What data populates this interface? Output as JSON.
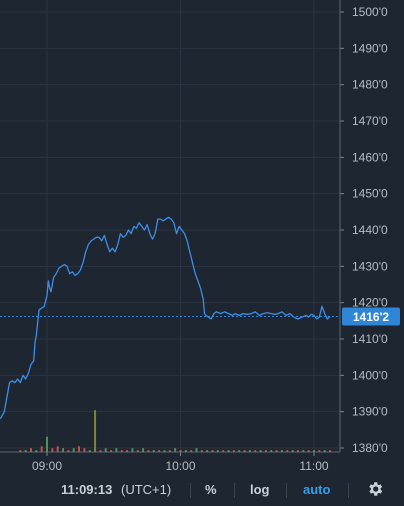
{
  "chart_data": {
    "type": "line",
    "title": "",
    "xlabel": "",
    "ylabel": "",
    "ylim": [
      1378,
      1502
    ],
    "xlim": [
      8.65,
      11.18
    ],
    "y_ticks": [
      "1500'0",
      "1490'0",
      "1480'0",
      "1470'0",
      "1460'0",
      "1450'0",
      "1440'0",
      "1430'0",
      "1420'0",
      "1410'0",
      "1400'0",
      "1390'0",
      "1380'0"
    ],
    "y_tick_values": [
      1500,
      1490,
      1480,
      1470,
      1460,
      1450,
      1440,
      1430,
      1420,
      1410,
      1400,
      1390,
      1380
    ],
    "x_ticks": [
      "09:00",
      "10:00",
      "11:00"
    ],
    "x_tick_values": [
      9,
      10,
      11
    ],
    "current_value_label": "1416'2",
    "current_value": 1416.2,
    "grid": true,
    "series": [
      {
        "values": [
          [
            8.65,
            1388
          ],
          [
            8.68,
            1390
          ],
          [
            8.7,
            1394
          ],
          [
            8.72,
            1398
          ],
          [
            8.74,
            1398.5
          ],
          [
            8.76,
            1398
          ],
          [
            8.78,
            1399
          ],
          [
            8.8,
            1398
          ],
          [
            8.82,
            1400
          ],
          [
            8.84,
            1399
          ],
          [
            8.86,
            1400.5
          ],
          [
            8.88,
            1403
          ],
          [
            8.9,
            1404
          ],
          [
            8.91,
            1409
          ],
          [
            8.92,
            1411
          ],
          [
            8.94,
            1418
          ],
          [
            8.96,
            1418.5
          ],
          [
            8.98,
            1419
          ],
          [
            9.0,
            1422
          ],
          [
            9.01,
            1426
          ],
          [
            9.02,
            1424
          ],
          [
            9.03,
            1423
          ],
          [
            9.05,
            1427
          ],
          [
            9.07,
            1428
          ],
          [
            9.09,
            1429.5
          ],
          [
            9.11,
            1430
          ],
          [
            9.13,
            1430.5
          ],
          [
            9.15,
            1430
          ],
          [
            9.17,
            1428
          ],
          [
            9.19,
            1428.5
          ],
          [
            9.21,
            1427.5
          ],
          [
            9.23,
            1428
          ],
          [
            9.25,
            1429
          ],
          [
            9.27,
            1431
          ],
          [
            9.29,
            1434
          ],
          [
            9.31,
            1436
          ],
          [
            9.33,
            1437
          ],
          [
            9.35,
            1437.5
          ],
          [
            9.37,
            1438
          ],
          [
            9.39,
            1438
          ],
          [
            9.41,
            1437
          ],
          [
            9.43,
            1438.5
          ],
          [
            9.45,
            1436
          ],
          [
            9.47,
            1434
          ],
          [
            9.49,
            1435
          ],
          [
            9.51,
            1434
          ],
          [
            9.53,
            1436
          ],
          [
            9.55,
            1439
          ],
          [
            9.57,
            1438
          ],
          [
            9.59,
            1438.5
          ],
          [
            9.61,
            1440
          ],
          [
            9.63,
            1439
          ],
          [
            9.65,
            1441
          ],
          [
            9.67,
            1440.5
          ],
          [
            9.69,
            1442
          ],
          [
            9.71,
            1441
          ],
          [
            9.73,
            1440
          ],
          [
            9.75,
            1441.5
          ],
          [
            9.77,
            1439
          ],
          [
            9.79,
            1437.5
          ],
          [
            9.81,
            1439
          ],
          [
            9.83,
            1443
          ],
          [
            9.85,
            1443
          ],
          [
            9.87,
            1442.5
          ],
          [
            9.89,
            1443
          ],
          [
            9.91,
            1443.5
          ],
          [
            9.93,
            1443
          ],
          [
            9.95,
            1442
          ],
          [
            9.97,
            1439
          ],
          [
            9.99,
            1441
          ],
          [
            10.01,
            1440
          ],
          [
            10.03,
            1439
          ],
          [
            10.05,
            1437
          ],
          [
            10.07,
            1434
          ],
          [
            10.09,
            1431
          ],
          [
            10.11,
            1428
          ],
          [
            10.13,
            1426
          ],
          [
            10.15,
            1424
          ],
          [
            10.17,
            1421
          ],
          [
            10.18,
            1417
          ],
          [
            10.19,
            1416.5
          ],
          [
            10.21,
            1416
          ],
          [
            10.23,
            1415.5
          ],
          [
            10.25,
            1417
          ],
          [
            10.27,
            1417.5
          ],
          [
            10.3,
            1417
          ],
          [
            10.33,
            1417.5
          ],
          [
            10.36,
            1417
          ],
          [
            10.39,
            1416.5
          ],
          [
            10.41,
            1417
          ],
          [
            10.44,
            1416.5
          ],
          [
            10.47,
            1417
          ],
          [
            10.5,
            1416.8
          ],
          [
            10.53,
            1417
          ],
          [
            10.56,
            1417.5
          ],
          [
            10.59,
            1416.5
          ],
          [
            10.62,
            1417
          ],
          [
            10.65,
            1417.2
          ],
          [
            10.68,
            1417
          ],
          [
            10.71,
            1416.8
          ],
          [
            10.73,
            1417
          ],
          [
            10.76,
            1417.5
          ],
          [
            10.79,
            1416.5
          ],
          [
            10.82,
            1417
          ],
          [
            10.85,
            1416
          ],
          [
            10.88,
            1415.5
          ],
          [
            10.91,
            1416
          ],
          [
            10.94,
            1416.5
          ],
          [
            10.96,
            1416
          ],
          [
            10.98,
            1416.8
          ],
          [
            11.0,
            1416.5
          ],
          [
            11.02,
            1415.5
          ],
          [
            11.04,
            1416
          ],
          [
            11.06,
            1419
          ],
          [
            11.08,
            1417
          ],
          [
            11.1,
            1415.5
          ],
          [
            11.12,
            1416.2
          ]
        ]
      }
    ],
    "volume": {
      "x": [
        8.8,
        8.84,
        8.88,
        8.92,
        8.96,
        9.0,
        9.04,
        9.08,
        9.12,
        9.16,
        9.2,
        9.24,
        9.28,
        9.32,
        9.36,
        9.4,
        9.44,
        9.48,
        9.52,
        9.56,
        9.6,
        9.64,
        9.68,
        9.72,
        9.76,
        9.8,
        9.84,
        9.88,
        9.92,
        9.96,
        10.0,
        10.04,
        10.08,
        10.12,
        10.16,
        10.2,
        10.24,
        10.28,
        10.32,
        10.36,
        10.4,
        10.44,
        10.48,
        10.52,
        10.56,
        10.6,
        10.64,
        10.68,
        10.72,
        10.76,
        10.8,
        10.84,
        10.88,
        10.92,
        10.96,
        11.0,
        11.04,
        11.08,
        11.12
      ],
      "values": [
        1,
        1,
        2,
        1,
        3,
        8,
        2,
        3,
        2,
        1,
        2,
        3,
        2,
        1,
        22,
        1,
        2,
        1,
        2,
        1,
        1,
        2,
        1,
        2,
        1,
        1,
        1,
        1,
        1,
        2,
        1,
        1,
        1,
        2,
        1,
        1,
        1,
        1,
        1,
        1,
        1,
        1,
        1,
        1,
        1,
        1,
        1,
        1,
        1,
        1,
        1,
        1,
        1,
        1,
        1,
        1,
        1,
        1,
        1
      ],
      "colors": [
        "#e0564f",
        "#5aa55a",
        "#e0564f",
        "#5aa55a",
        "#e0564f",
        "#5aa55a",
        "#e0564f",
        "#e0564f",
        "#5aa55a",
        "#e0564f",
        "#5aa55a",
        "#e0564f",
        "#e0564f",
        "#5aa55a",
        "#8a9a3a",
        "#e0564f",
        "#5aa55a",
        "#e0564f",
        "#5aa55a",
        "#e0564f",
        "#e0564f",
        "#5aa55a",
        "#e0564f",
        "#5aa55a",
        "#e0564f",
        "#5aa55a",
        "#e0564f",
        "#5aa55a",
        "#e0564f",
        "#5aa55a",
        "#e0564f",
        "#5aa55a",
        "#e0564f",
        "#5aa55a",
        "#e0564f",
        "#5aa55a",
        "#e0564f",
        "#5aa55a",
        "#e0564f",
        "#5aa55a",
        "#e0564f",
        "#5aa55a",
        "#e0564f",
        "#5aa55a",
        "#e0564f",
        "#5aa55a",
        "#e0564f",
        "#5aa55a",
        "#e0564f",
        "#5aa55a",
        "#e0564f",
        "#5aa55a",
        "#e0564f",
        "#5aa55a",
        "#e0564f",
        "#5aa55a",
        "#e0564f",
        "#5aa55a",
        "#e0564f"
      ]
    },
    "colors": {
      "background": "#1e2631",
      "line": "#3d8ee6",
      "grid": "#2b3440",
      "axis_text": "#b4bcc6",
      "price_badge": "#2f86d6",
      "price_badge_text": "#ffffff"
    }
  },
  "toolbar": {
    "time": "11:09:13",
    "timezone": "(UTC+1)",
    "percent_label": "%",
    "log_label": "log",
    "auto_label": "auto",
    "settings_icon": "gear-icon"
  }
}
